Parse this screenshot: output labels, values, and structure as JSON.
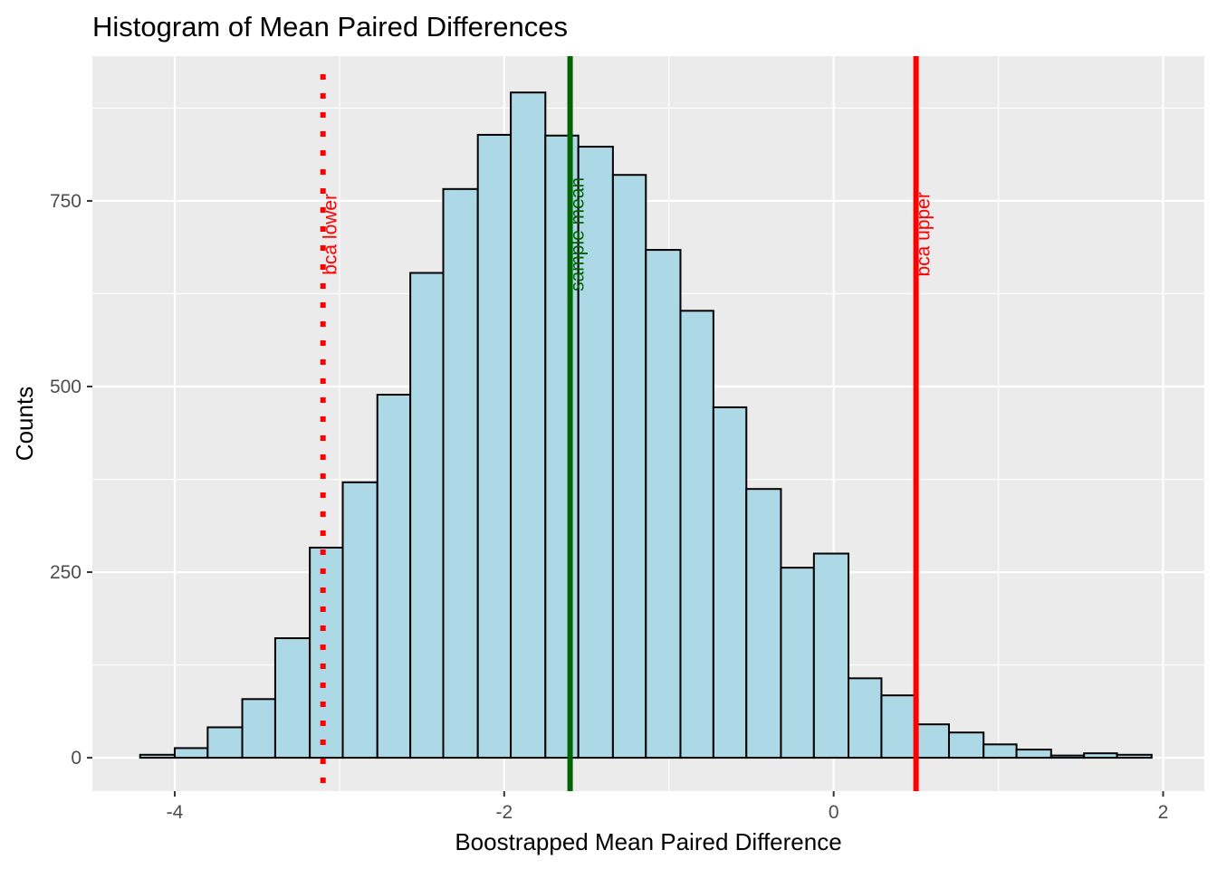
{
  "chart_data": {
    "type": "bar",
    "subtype": "histogram",
    "title": "Histogram of Mean Paired Differences",
    "xlabel": "Boostrapped Mean Paired Difference",
    "ylabel": "Counts",
    "xlim": [
      -4.5,
      2.25
    ],
    "ylim": [
      -45,
      945
    ],
    "x_ticks": [
      -4,
      -2,
      0,
      2
    ],
    "x_tick_labels": [
      "-4",
      "-2",
      "0",
      "2"
    ],
    "y_ticks": [
      0,
      250,
      500,
      750
    ],
    "y_tick_labels": [
      "0",
      "250",
      "500",
      "750"
    ],
    "grid": true,
    "bar_fill": "#add8e6",
    "bar_stroke": "#000000",
    "panel_background": "#ebebeb",
    "bins": [
      {
        "x0": -4.21,
        "x1": -4.0,
        "count": 4
      },
      {
        "x0": -4.0,
        "x1": -3.8,
        "count": 13
      },
      {
        "x0": -3.8,
        "x1": -3.59,
        "count": 41
      },
      {
        "x0": -3.59,
        "x1": -3.39,
        "count": 79
      },
      {
        "x0": -3.39,
        "x1": -3.18,
        "count": 161
      },
      {
        "x0": -3.18,
        "x1": -2.98,
        "count": 283
      },
      {
        "x0": -2.98,
        "x1": -2.77,
        "count": 371
      },
      {
        "x0": -2.77,
        "x1": -2.57,
        "count": 489
      },
      {
        "x0": -2.57,
        "x1": -2.37,
        "count": 653
      },
      {
        "x0": -2.37,
        "x1": -2.16,
        "count": 766
      },
      {
        "x0": -2.16,
        "x1": -1.96,
        "count": 839
      },
      {
        "x0": -1.96,
        "x1": -1.75,
        "count": 896
      },
      {
        "x0": -1.75,
        "x1": -1.55,
        "count": 838
      },
      {
        "x0": -1.55,
        "x1": -1.34,
        "count": 823
      },
      {
        "x0": -1.34,
        "x1": -1.14,
        "count": 785
      },
      {
        "x0": -1.14,
        "x1": -0.93,
        "count": 684
      },
      {
        "x0": -0.93,
        "x1": -0.73,
        "count": 602
      },
      {
        "x0": -0.73,
        "x1": -0.53,
        "count": 472
      },
      {
        "x0": -0.53,
        "x1": -0.32,
        "count": 362
      },
      {
        "x0": -0.32,
        "x1": -0.12,
        "count": 256
      },
      {
        "x0": -0.12,
        "x1": 0.09,
        "count": 275
      },
      {
        "x0": 0.09,
        "x1": 0.29,
        "count": 107
      },
      {
        "x0": 0.29,
        "x1": 0.5,
        "count": 84
      },
      {
        "x0": 0.5,
        "x1": 0.7,
        "count": 45
      },
      {
        "x0": 0.7,
        "x1": 0.91,
        "count": 34
      },
      {
        "x0": 0.91,
        "x1": 1.11,
        "count": 18
      },
      {
        "x0": 1.11,
        "x1": 1.32,
        "count": 11
      },
      {
        "x0": 1.32,
        "x1": 1.52,
        "count": 3
      },
      {
        "x0": 1.52,
        "x1": 1.72,
        "count": 6
      },
      {
        "x0": 1.72,
        "x1": 1.93,
        "count": 4
      }
    ],
    "reference_lines": [
      {
        "label": "bca lower",
        "x": -3.1,
        "color": "#ff0000",
        "style": "dotted"
      },
      {
        "label": "sample mean",
        "x": -1.6,
        "color": "#006400",
        "style": "solid"
      },
      {
        "label": "bca upper",
        "x": 0.5,
        "color": "#ff0000",
        "style": "solid"
      }
    ]
  }
}
